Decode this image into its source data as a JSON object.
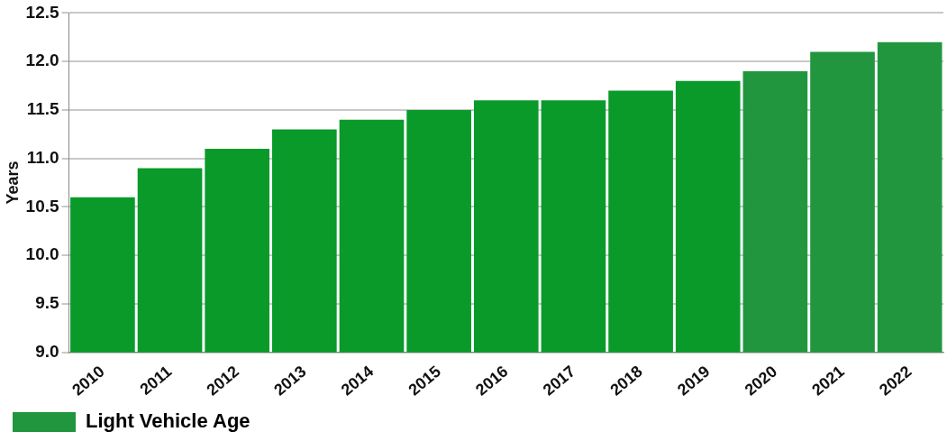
{
  "chart_data": {
    "type": "bar",
    "ylabel": "Years",
    "categories": [
      "2010",
      "2011",
      "2012",
      "2013",
      "2014",
      "2015",
      "2016",
      "2017",
      "2018",
      "2019",
      "2020",
      "2021",
      "2022"
    ],
    "series": [
      {
        "name": "Light Vehicle Age",
        "color": "#21963f",
        "colors": [
          "#0a9a2a",
          "#0a9a2a",
          "#0a9a2a",
          "#0a9a2a",
          "#0a9a2a",
          "#0a9a2a",
          "#0a9a2a",
          "#0a9a2a",
          "#0a9a2a",
          "#0a9a2a",
          "#21963f",
          "#21963f",
          "#21963f"
        ],
        "values": [
          10.6,
          10.9,
          11.1,
          11.3,
          11.4,
          11.5,
          11.6,
          11.6,
          11.7,
          11.8,
          11.9,
          12.1,
          12.2
        ]
      }
    ],
    "ylim": [
      9.0,
      12.5
    ],
    "yticks": [
      {
        "value": 9.0,
        "label": "9.0"
      },
      {
        "value": 9.5,
        "label": "9.5"
      },
      {
        "value": 10.0,
        "label": "10.0"
      },
      {
        "value": 10.5,
        "label": "10.5"
      },
      {
        "value": 11.0,
        "label": "11.0"
      },
      {
        "value": 11.5,
        "label": "11.5"
      },
      {
        "value": 12.0,
        "label": "12.0"
      },
      {
        "value": 12.5,
        "label": "12.5"
      }
    ],
    "grid": "y",
    "legend": "bottom left"
  }
}
